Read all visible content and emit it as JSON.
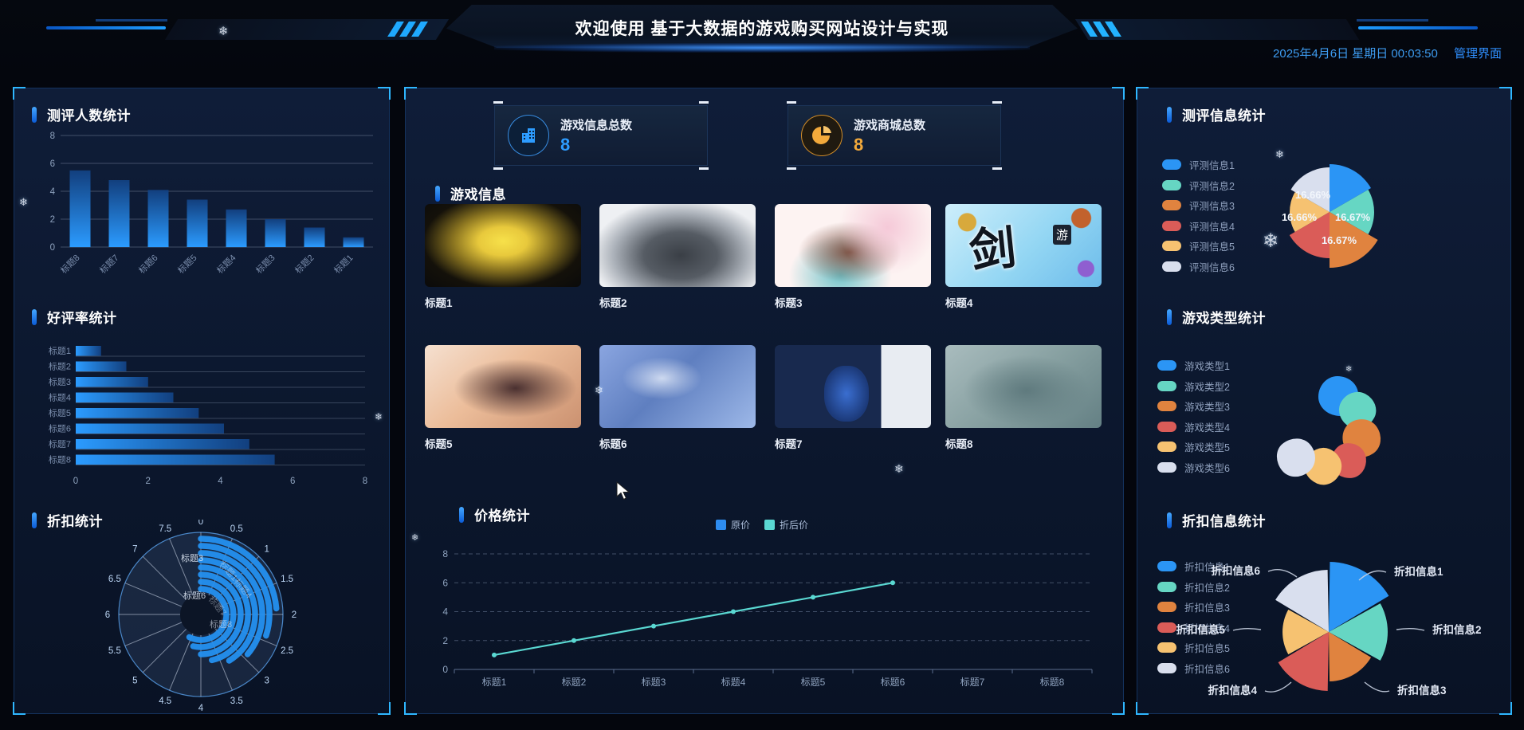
{
  "header": {
    "title": "欢迎使用 基于大数据的游戏购买网站设计与实现",
    "datetime": "2025年4月6日 星期日 00:03:50",
    "admin_link": "管理界面"
  },
  "decor": {
    "snowflake": "❄"
  },
  "stat_cards": [
    {
      "label": "游戏信息总数",
      "value": "8",
      "icon": "building-icon",
      "color": "#2d9cff"
    },
    {
      "label": "游戏商城总数",
      "value": "8",
      "icon": "pie-icon",
      "color": "#f2a93b"
    }
  ],
  "games_section": {
    "title": "游戏信息"
  },
  "games": {
    "titles": [
      "标题1",
      "标题2",
      "标题3",
      "标题4",
      "标题5",
      "标题6",
      "标题7",
      "标题8"
    ],
    "cover_texts": [
      "",
      "",
      "",
      "剑",
      "",
      "",
      "",
      ""
    ],
    "cover_badges": [
      "",
      "",
      "",
      "游",
      "",
      "",
      "",
      ""
    ]
  },
  "palette": [
    "#2b95f5",
    "#66d6c3",
    "#e0833f",
    "#da5c58",
    "#f6c271",
    "#d9dfee"
  ],
  "chart_data": [
    {
      "id": "review_count",
      "type": "bar",
      "title": "测评人数统计",
      "categories": [
        "标题8",
        "标题7",
        "标题6",
        "标题5",
        "标题4",
        "标题3",
        "标题2",
        "标题1"
      ],
      "values": [
        5.5,
        4.8,
        4.1,
        3.4,
        2.7,
        2.0,
        1.4,
        0.7
      ],
      "yticks": [
        8,
        6,
        4,
        2,
        0
      ],
      "ylim": [
        0,
        8
      ],
      "bar_gradient": [
        "#123f7e",
        "#2b9bff"
      ]
    },
    {
      "id": "praise_rate",
      "type": "bar",
      "orientation": "horizontal",
      "title": "好评率统计",
      "categories": [
        "标题1",
        "标题2",
        "标题3",
        "标题4",
        "标题5",
        "标题6",
        "标题7",
        "标题8"
      ],
      "values": [
        0.7,
        1.4,
        2.0,
        2.7,
        3.4,
        4.1,
        4.8,
        5.5
      ],
      "xticks": [
        0,
        2,
        4,
        6,
        8
      ],
      "xlim": [
        0,
        8
      ],
      "bar_gradient": [
        "#2b9bff",
        "#123f7e"
      ]
    },
    {
      "id": "discount",
      "type": "polar-bar",
      "title": "折扣统计",
      "angle_ticks": [
        "0",
        "0.5",
        "1",
        "1.5",
        "2",
        "2.5",
        "3",
        "3.5",
        "4",
        "4.5",
        "5",
        "5.5",
        "6",
        "6.5",
        "7",
        "7.5"
      ],
      "categories": [
        "标题1",
        "标题2",
        "标题3",
        "标题4",
        "标题5",
        "标题6",
        "标题7",
        "标题8"
      ],
      "values": [
        4.6,
        4.3,
        4.0,
        3.7,
        3.3,
        2.9,
        2.4,
        1.9
      ],
      "rlim": [
        0,
        8
      ],
      "bar_color": "#2490f0",
      "center_labels": [
        "标题3",
        "标题6",
        "标题8",
        "标题1",
        "标题4",
        "标题7"
      ]
    },
    {
      "id": "price",
      "type": "line",
      "title": "价格统计",
      "legend": [
        "原价",
        "折后价"
      ],
      "legend_colors": [
        "#2d8cf0",
        "#5ad8d2"
      ],
      "categories": [
        "标题1",
        "标题2",
        "标题3",
        "标题4",
        "标题5",
        "标题6",
        "标题7",
        "标题8"
      ],
      "series": [
        {
          "name": "原价",
          "color": "#2d8cf0",
          "values": []
        },
        {
          "name": "折后价",
          "color": "#5ad8d2",
          "values": [
            1,
            2,
            3,
            4,
            5,
            6
          ]
        }
      ],
      "yticks": [
        8,
        6,
        4,
        2,
        0
      ],
      "ylim": [
        0,
        8
      ]
    },
    {
      "id": "review_info",
      "type": "pie-rose",
      "title": "测评信息统计",
      "legend": [
        "评测信息1",
        "评测信息2",
        "评测信息3",
        "评测信息4",
        "评测信息5",
        "评测信息6"
      ],
      "values": [
        16.66,
        16.67,
        16.67,
        16.67,
        16.66,
        16.66
      ],
      "pct_labels": [
        "16.66%",
        "16.66%",
        "16.67%",
        "16.67%"
      ]
    },
    {
      "id": "game_type",
      "type": "bubble-ring",
      "title": "游戏类型统计",
      "legend": [
        "游戏类型1",
        "游戏类型2",
        "游戏类型3",
        "游戏类型4",
        "游戏类型5",
        "游戏类型6"
      ]
    },
    {
      "id": "discount_info",
      "type": "pie-rose",
      "title": "折扣信息统计",
      "legend": [
        "折扣信息1",
        "折扣信息2",
        "折扣信息3",
        "折扣信息4",
        "折扣信息5",
        "折扣信息6"
      ],
      "callouts": [
        "折扣信息1",
        "折扣信息2",
        "折扣信息3",
        "折扣信息4",
        "折扣信息5",
        "折扣信息6"
      ]
    }
  ]
}
